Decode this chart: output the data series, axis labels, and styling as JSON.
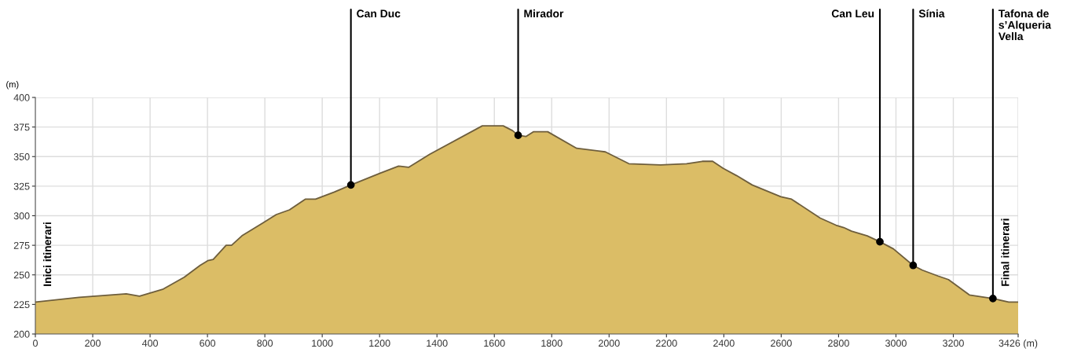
{
  "chart_data": {
    "type": "area",
    "ylabel": "(m)",
    "x": [
      0,
      152,
      317,
      363,
      446,
      519,
      574,
      601,
      620,
      665,
      684,
      720,
      794,
      840,
      886,
      941,
      977,
      1042,
      1100,
      1202,
      1266,
      1302,
      1375,
      1558,
      1631,
      1663,
      1683,
      1710,
      1736,
      1786,
      1887,
      1987,
      2069,
      2179,
      2270,
      2325,
      2361,
      2398,
      2444,
      2499,
      2599,
      2636,
      2736,
      2791,
      2818,
      2845,
      2900,
      2944,
      2991,
      3060,
      3092,
      3147,
      3183,
      3256,
      3338,
      3393,
      3426
    ],
    "series": [
      {
        "color": "#dbbd66",
        "values": [
          227,
          231,
          234,
          232,
          238,
          248,
          258,
          262,
          263,
          275,
          275,
          283,
          294,
          301,
          305,
          314,
          314,
          320,
          326,
          336,
          342,
          341,
          352,
          376,
          376,
          372,
          368,
          367,
          371,
          371,
          357,
          354,
          344,
          343,
          344,
          346,
          346,
          340,
          334,
          326,
          316,
          314,
          298,
          292,
          290,
          287,
          283,
          278,
          272,
          258,
          254,
          249,
          246,
          233,
          230,
          227,
          227
        ]
      }
    ],
    "xlim": [
      0,
      3426
    ],
    "ylim": [
      200,
      400
    ],
    "xticks": [
      0,
      200,
      400,
      600,
      800,
      1000,
      1200,
      1400,
      1600,
      1800,
      2000,
      2200,
      2400,
      2600,
      2800,
      3000,
      3200,
      {
        "value": 3426,
        "label": "3426 (m)"
      }
    ],
    "yticks": [
      200,
      225,
      250,
      275,
      300,
      325,
      350,
      375,
      400
    ],
    "grid": true,
    "annotations": [
      {
        "text": "Can Duc",
        "x": 1100,
        "y": 326
      },
      {
        "text": "Mirador",
        "x": 1683,
        "y": 368
      },
      {
        "text": "Can Leu",
        "x": 2944,
        "y": 278
      },
      {
        "text": "Sínia",
        "x": 3060,
        "y": 258
      },
      {
        "text": "Tafona de\ns’Alqueria\nVella",
        "x": 3338,
        "y": 230
      },
      "Inici itinerari",
      "Final itinerari"
    ]
  }
}
